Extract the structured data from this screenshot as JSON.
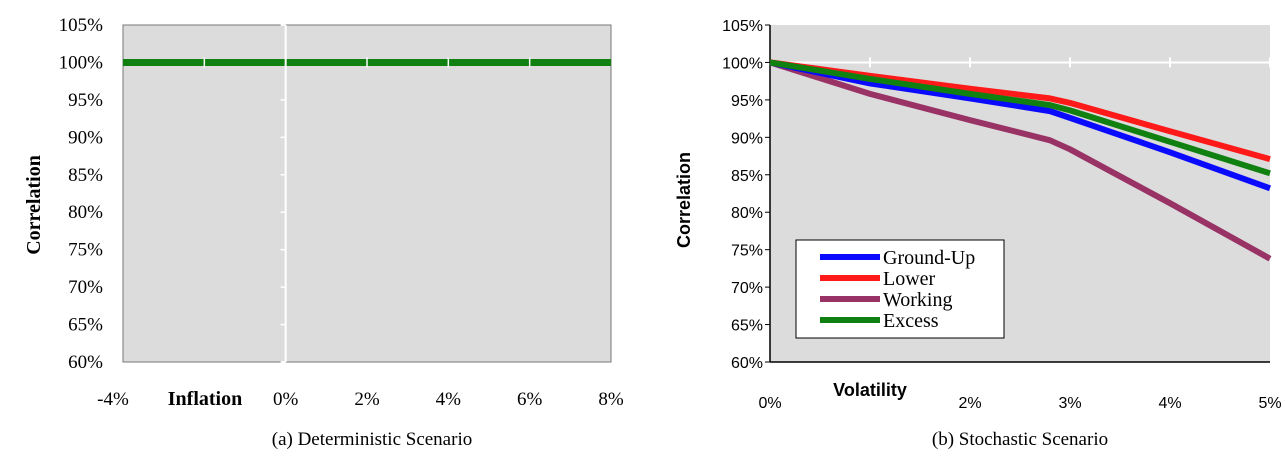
{
  "chart_data": [
    {
      "type": "line",
      "caption": "(a) Deterministic Scenario",
      "xlabel": "Inflation",
      "ylabel": "Correlation",
      "x_ticks": [
        "-4%",
        "0%",
        "2%",
        "4%",
        "6%",
        "8%"
      ],
      "y_ticks": [
        "60%",
        "65%",
        "70%",
        "75%",
        "80%",
        "85%",
        "90%",
        "95%",
        "100%",
        "105%"
      ],
      "xlim": [
        -4,
        8
      ],
      "ylim": [
        60,
        105
      ],
      "grid": true,
      "series": [
        {
          "color": "#108010",
          "x": [
            -4,
            8
          ],
          "y": [
            100,
            100
          ]
        }
      ]
    },
    {
      "type": "line",
      "caption": "(b) Stochastic Scenario",
      "xlabel": "Volatility",
      "ylabel": "Correlation",
      "x_ticks": [
        "0%",
        "2%",
        "3%",
        "4%",
        "5%"
      ],
      "y_ticks": [
        "60%",
        "65%",
        "70%",
        "75%",
        "80%",
        "85%",
        "90%",
        "95%",
        "100%",
        "105%"
      ],
      "xlim": [
        0,
        5
      ],
      "ylim": [
        60,
        105
      ],
      "grid": true,
      "legend": "lower-left",
      "series": [
        {
          "name": "Ground-Up",
          "color": "#0a0aff",
          "x": [
            0,
            1,
            2,
            2.8,
            3,
            4,
            5
          ],
          "y": [
            100,
            97.2,
            95.2,
            93.5,
            92.6,
            88,
            83.2
          ]
        },
        {
          "name": "Lower",
          "color": "#ff1a1a",
          "x": [
            0,
            1,
            2,
            2.8,
            3,
            4,
            5
          ],
          "y": [
            100,
            98.2,
            96.5,
            95.2,
            94.6,
            90.8,
            87.1
          ]
        },
        {
          "name": "Working",
          "color": "#993366",
          "x": [
            0,
            1,
            2,
            2.8,
            3,
            3.5,
            4,
            5
          ],
          "y": [
            100,
            95.8,
            92.3,
            89.6,
            88.4,
            84.8,
            81.2,
            73.8
          ]
        },
        {
          "name": "Excess",
          "color": "#108010",
          "x": [
            0,
            1,
            2,
            2.8,
            3,
            4,
            5
          ],
          "y": [
            100,
            97.8,
            95.8,
            94.3,
            93.6,
            89.4,
            85.2
          ]
        }
      ]
    }
  ]
}
